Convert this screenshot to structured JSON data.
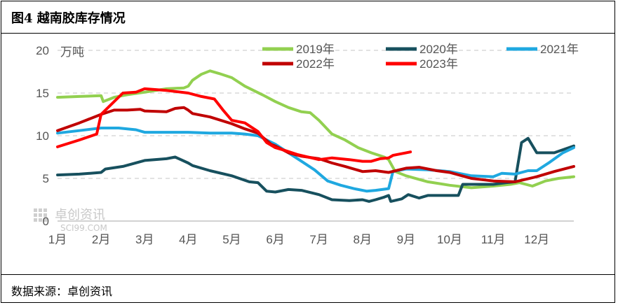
{
  "header": {
    "title": "图4  越南胶库存情况"
  },
  "footer": {
    "source": "数据来源：卓创资讯"
  },
  "watermark": {
    "name": "卓创资讯",
    "site": "SCI99.COM"
  },
  "chart_data": {
    "type": "line",
    "title": "图4  越南胶库存情况",
    "ylabel": "万吨",
    "xlabel": "",
    "ylim": [
      0,
      20
    ],
    "yticks": [
      0,
      5,
      10,
      15,
      20
    ],
    "xlim": [
      1,
      12.85
    ],
    "categories": [
      "1月",
      "2月",
      "3月",
      "4月",
      "5月",
      "6月",
      "7月",
      "8月",
      "9月",
      "10月",
      "11月",
      "12月"
    ],
    "grid": "horizontal dashed",
    "legend_position": "top",
    "series": [
      {
        "name": "2019年",
        "color": "#92D050",
        "x": [
          1.0,
          1.5,
          2.0,
          2.05,
          2.3,
          2.6,
          3.0,
          3.5,
          3.9,
          4.0,
          4.1,
          4.3,
          4.5,
          4.7,
          5.0,
          5.3,
          5.7,
          6.0,
          6.3,
          6.6,
          6.8,
          7.0,
          7.3,
          7.6,
          7.9,
          8.2,
          8.5,
          8.6,
          8.75,
          9.0,
          9.5,
          10.0,
          10.5,
          11.0,
          11.4,
          11.6,
          11.9,
          12.2,
          12.5,
          12.85
        ],
        "y": [
          14.5,
          14.6,
          14.7,
          14.0,
          14.5,
          14.8,
          15.1,
          15.5,
          15.6,
          15.8,
          16.5,
          17.2,
          17.6,
          17.3,
          16.8,
          15.8,
          14.8,
          14.0,
          13.3,
          12.8,
          12.7,
          11.8,
          10.2,
          9.5,
          8.6,
          8.0,
          7.5,
          7.2,
          5.8,
          5.3,
          4.6,
          4.2,
          3.9,
          4.1,
          4.3,
          4.5,
          4.1,
          4.7,
          5.0,
          5.2
        ]
      },
      {
        "name": "2020年",
        "color": "#17505E",
        "x": [
          1.0,
          1.5,
          2.0,
          2.1,
          2.5,
          3.0,
          3.5,
          3.7,
          4.0,
          4.1,
          4.5,
          5.0,
          5.4,
          5.6,
          5.8,
          6.0,
          6.3,
          6.6,
          7.0,
          7.3,
          7.7,
          8.0,
          8.15,
          8.3,
          8.5,
          8.6,
          8.65,
          8.9,
          9.05,
          9.3,
          9.5,
          10.0,
          10.2,
          10.3,
          10.8,
          11.0,
          11.3,
          11.5,
          11.65,
          11.8,
          12.0,
          12.4,
          12.85
        ],
        "y": [
          5.4,
          5.5,
          5.7,
          6.1,
          6.4,
          7.1,
          7.3,
          7.5,
          6.8,
          6.5,
          5.9,
          5.3,
          4.6,
          4.5,
          3.5,
          3.4,
          3.7,
          3.6,
          3.1,
          2.5,
          2.4,
          2.5,
          2.3,
          2.5,
          2.8,
          3.0,
          2.3,
          2.6,
          3.1,
          2.7,
          3.0,
          3.0,
          3.0,
          4.3,
          4.3,
          4.3,
          4.5,
          4.6,
          9.2,
          9.7,
          8.0,
          8.0,
          8.8
        ]
      },
      {
        "name": "2021年",
        "color": "#1FA8E0",
        "x": [
          1.0,
          1.5,
          2.0,
          2.4,
          2.8,
          3.0,
          3.5,
          4.0,
          4.5,
          5.0,
          5.3,
          5.6,
          6.0,
          6.3,
          6.6,
          6.9,
          7.2,
          7.5,
          7.8,
          8.1,
          8.3,
          8.6,
          8.7,
          9.0,
          9.5,
          10.0,
          10.5,
          11.0,
          11.2,
          11.5,
          11.8,
          12.0,
          12.3,
          12.6,
          12.85
        ],
        "y": [
          10.3,
          10.6,
          10.9,
          10.9,
          10.7,
          10.4,
          10.4,
          10.4,
          10.3,
          10.3,
          10.2,
          10.0,
          9.0,
          8.0,
          7.0,
          6.0,
          4.7,
          4.2,
          3.8,
          3.5,
          3.6,
          3.8,
          5.8,
          6.1,
          6.0,
          5.8,
          5.3,
          5.2,
          5.6,
          5.5,
          5.9,
          5.9,
          6.9,
          8.0,
          8.6
        ]
      },
      {
        "name": "2022年",
        "color": "#C00000",
        "x": [
          1.0,
          1.5,
          2.0,
          2.3,
          2.6,
          2.9,
          3.0,
          3.5,
          3.7,
          3.9,
          4.0,
          4.1,
          4.5,
          5.0,
          5.3,
          5.6,
          5.9,
          6.0,
          6.3,
          6.6,
          7.0,
          7.3,
          7.6,
          8.0,
          8.3,
          8.6,
          9.0,
          9.3,
          9.7,
          10.0,
          10.5,
          11.0,
          11.5,
          12.0,
          12.4,
          12.85
        ],
        "y": [
          10.6,
          11.5,
          12.5,
          13.0,
          13.0,
          13.1,
          12.9,
          12.8,
          13.2,
          13.3,
          13.0,
          12.6,
          12.2,
          11.4,
          10.8,
          10.3,
          9.0,
          8.8,
          8.0,
          7.6,
          7.3,
          6.8,
          6.4,
          5.8,
          5.9,
          5.7,
          6.2,
          6.3,
          5.9,
          5.7,
          5.0,
          4.7,
          4.6,
          5.2,
          5.8,
          6.4
        ]
      },
      {
        "name": "2023年",
        "color": "#FF0000",
        "x": [
          1.0,
          1.5,
          1.9,
          2.0,
          2.2,
          2.5,
          2.8,
          3.0,
          3.5,
          4.0,
          4.3,
          4.6,
          4.8,
          5.0,
          5.3,
          5.6,
          5.8,
          6.0,
          6.2,
          6.5,
          7.0,
          7.3,
          7.7,
          8.0,
          8.2,
          8.4,
          8.6,
          8.7,
          9.0,
          9.1
        ],
        "y": [
          8.7,
          9.5,
          10.2,
          12.5,
          13.5,
          15.0,
          15.1,
          15.5,
          15.3,
          15.0,
          14.6,
          14.3,
          13.0,
          11.8,
          11.5,
          10.5,
          9.2,
          8.6,
          8.3,
          7.8,
          7.2,
          7.4,
          7.2,
          7.0,
          7.0,
          7.3,
          7.4,
          7.7,
          8.0,
          8.1
        ]
      }
    ]
  }
}
